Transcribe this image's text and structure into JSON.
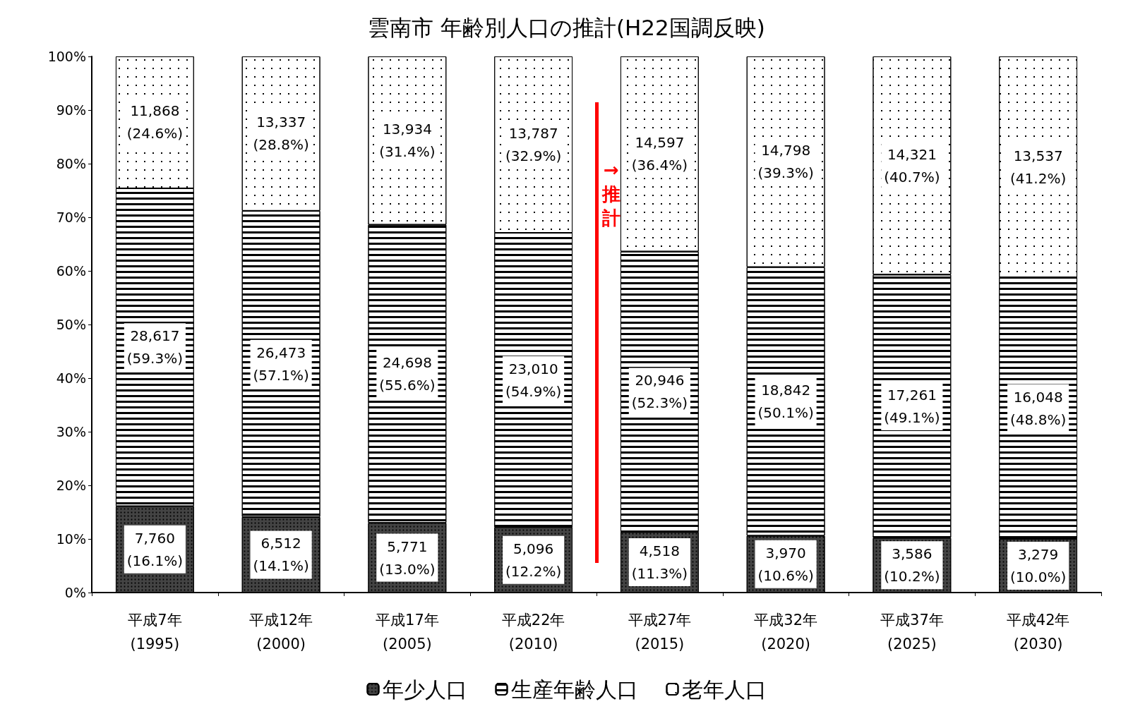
{
  "chart_data": {
    "type": "bar",
    "title": "雲南市 年齢別人口の推計(H22国調反映)",
    "stacked": true,
    "legend": "bottom",
    "grid": false,
    "categories": [
      "平成7年\n(1995)",
      "平成12年\n(2000)",
      "平成17年\n(2005)",
      "平成22年\n(2010)",
      "平成27年\n(2015)",
      "平成32年\n(2020)",
      "平成37年\n(2025)",
      "平成42年\n(2030)"
    ],
    "ylim": [
      0,
      100
    ],
    "yticks": [
      {
        "value": 0,
        "label": "0%"
      },
      {
        "value": 10,
        "label": "10%"
      },
      {
        "value": 20,
        "label": "20%"
      },
      {
        "value": 30,
        "label": "30%"
      },
      {
        "value": 40,
        "label": "40%"
      },
      {
        "value": 50,
        "label": "50%"
      },
      {
        "value": 60,
        "label": "60%"
      },
      {
        "value": 70,
        "label": "70%"
      },
      {
        "value": 80,
        "label": "80%"
      },
      {
        "value": 90,
        "label": "90%"
      },
      {
        "value": 100,
        "label": "100%"
      }
    ],
    "series": [
      {
        "name": "年少人口",
        "color": "#444444",
        "values": [
          16.1,
          14.1,
          13.0,
          12.2,
          11.3,
          10.6,
          10.2,
          10.0
        ],
        "value_labels": [
          "7,760\n(16.1%)",
          "6,512\n(14.1%)",
          "5,771\n(13.0%)",
          "5,096\n(12.2%)",
          "4,518\n(11.3%)",
          "3,970\n(10.6%)",
          "3,586\n(10.2%)",
          "3,279\n(10.0%)"
        ]
      },
      {
        "name": "生産年齢人口",
        "color": "#ffffff",
        "values": [
          59.3,
          57.1,
          55.6,
          54.9,
          52.3,
          50.1,
          49.1,
          48.8
        ],
        "value_labels": [
          "28,617\n(59.3%)",
          "26,473\n(57.1%)",
          "24,698\n(55.6%)",
          "23,010\n(54.9%)",
          "20,946\n(52.3%)",
          "18,842\n(50.1%)",
          "17,261\n(49.1%)",
          "16,048\n(48.8%)"
        ]
      },
      {
        "name": "老年人口",
        "color": "#ffffff",
        "values": [
          24.6,
          28.8,
          31.4,
          32.9,
          36.4,
          39.3,
          40.7,
          41.2
        ],
        "value_labels": [
          "11,868\n(24.6%)",
          "13,337\n(28.8%)",
          "13,934\n(31.4%)",
          "13,787\n(32.9%)",
          "14,597\n(36.4%)",
          "14,798\n(39.3%)",
          "14,321\n(40.7%)",
          "13,537\n(41.2%)"
        ]
      }
    ],
    "annotations": [
      "→推計"
    ]
  }
}
